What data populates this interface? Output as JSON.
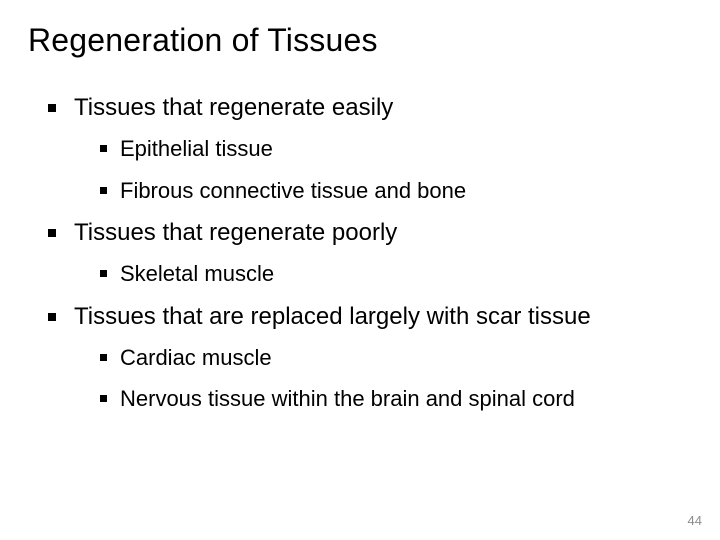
{
  "slide": {
    "title": "Regeneration of Tissues",
    "page_number": "44",
    "background_color": "#ffffff",
    "text_color": "#000000",
    "pagenum_color": "#8c8c8c",
    "title_fontsize": 32,
    "body_fontsize_lvl1": 24,
    "body_fontsize_lvl2": 22,
    "bullet_shape": "square",
    "bullet_color": "#000000",
    "sections": [
      {
        "heading": "Tissues that regenerate easily",
        "items": [
          "Epithelial tissue",
          "Fibrous connective tissue and bone"
        ]
      },
      {
        "heading": "Tissues that regenerate poorly",
        "items": [
          "Skeletal muscle"
        ]
      },
      {
        "heading": "Tissues that are replaced largely with scar tissue",
        "items": [
          "Cardiac muscle",
          "Nervous tissue within the brain and spinal cord"
        ]
      }
    ]
  }
}
